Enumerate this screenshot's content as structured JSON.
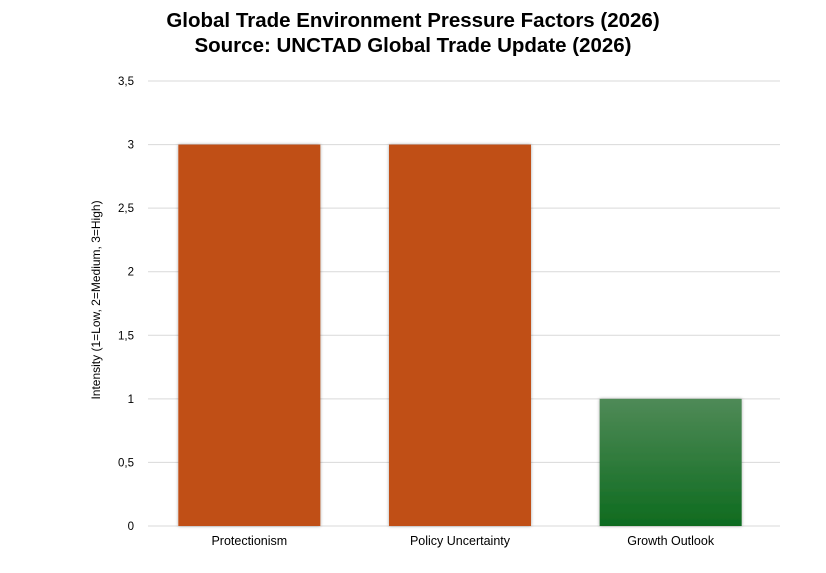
{
  "chart_data": {
    "type": "bar",
    "title": "Global Trade Environment Pressure Factors (2026)",
    "subtitle": "Source: UNCTAD Global Trade Update (2026)",
    "xlabel": "",
    "ylabel": "Intensity (1=Low, 2=Medium, 3=High)",
    "categories": [
      "Protectionism",
      "Policy Uncertainty",
      "Growth Outlook"
    ],
    "values": [
      3,
      3,
      1
    ],
    "ylim": [
      0,
      3.5
    ],
    "yticks": [
      "0",
      "0,5",
      "1",
      "1,5",
      "2",
      "2,5",
      "3",
      "3,5"
    ],
    "grid": true,
    "legend": "none",
    "colors": {
      "protectionism": "#C05016",
      "policy_uncertainty": "#C05016",
      "growth_outlook_top": "#4F8A57",
      "growth_outlook_bottom": "#0E6B1F",
      "grid": "#D9D9D9"
    }
  }
}
